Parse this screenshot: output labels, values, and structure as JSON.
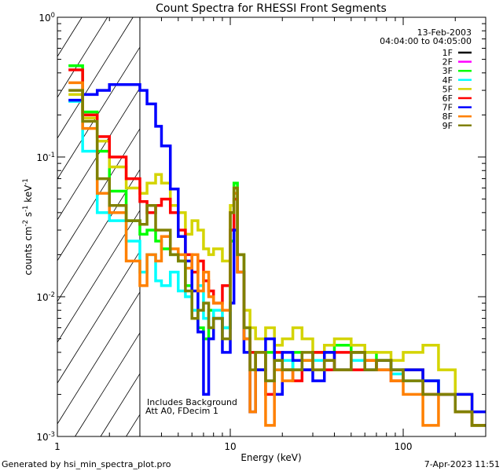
{
  "chart_data": {
    "type": "line",
    "title": "Count Spectra for RHESSI Front Segments",
    "xlabel": "Energy (keV)",
    "ylabel": "counts cm^-2 s^-1 keV^-1",
    "xscale": "log",
    "yscale": "log",
    "xlim": [
      1,
      300
    ],
    "ylim": [
      0.001,
      1
    ],
    "x_ticks": [
      {
        "v": 1,
        "label": "1"
      },
      {
        "v": 10,
        "label": "10"
      },
      {
        "v": 100,
        "label": "100"
      }
    ],
    "y_ticks": [
      {
        "v": 1,
        "label": "10^0"
      },
      {
        "v": 0.1,
        "label": "10^-1"
      },
      {
        "v": 0.01,
        "label": "10^-2"
      },
      {
        "v": 0.001,
        "label": "10^-3"
      }
    ],
    "legend_placement": "top-right",
    "legend_header": [
      "13-Feb-2003",
      "04:04:00 to 04:05:00"
    ],
    "annotations": [
      "Includes Background",
      "Att A0, FDecim 1"
    ],
    "hatched_region_keV": [
      1,
      3
    ],
    "energy_edges": [
      1.16,
      1.4,
      1.7,
      2.0,
      2.5,
      3.0,
      3.3,
      3.7,
      4.0,
      4.5,
      5.0,
      5.5,
      6.0,
      6.5,
      7.0,
      7.5,
      8.0,
      9.0,
      10.0,
      10.5,
      11.0,
      12,
      13,
      14,
      16,
      18,
      20,
      23,
      26,
      30,
      35,
      40,
      50,
      60,
      70,
      85,
      100,
      130,
      160,
      200,
      250,
      300
    ],
    "series": [
      {
        "name": "1F",
        "color": "#000000",
        "values": []
      },
      {
        "name": "2F",
        "color": "#ff00ff",
        "values": []
      },
      {
        "name": "3F",
        "color": "#00ff00",
        "values": [
          0.45,
          0.21,
          0.11,
          0.057,
          0.035,
          0.028,
          0.03,
          0.025,
          0.022,
          0.02,
          0.018,
          0.012,
          0.008,
          0.006,
          0.005,
          0.008,
          0.007,
          0.006,
          0.025,
          0.065,
          0.02,
          0.006,
          0.004,
          0.003,
          0.004,
          0.0035,
          0.003,
          0.004,
          0.0035,
          0.004,
          0.004,
          0.0045,
          0.004,
          0.004,
          0.0035,
          0.003,
          0.003,
          0.0025,
          0.002,
          0.0015,
          0.0012
        ]
      },
      {
        "name": "4F",
        "color": "#00ffff",
        "values": [
          0.25,
          0.11,
          0.04,
          0.035,
          0.025,
          0.015,
          0.02,
          0.013,
          0.012,
          0.015,
          0.011,
          0.01,
          0.008,
          0.012,
          0.007,
          0.006,
          0.008,
          0.006,
          0.03,
          0.05,
          0.02,
          0.005,
          0.004,
          0.003,
          0.0025,
          0.003,
          0.0035,
          0.003,
          0.003,
          0.0035,
          0.003,
          0.003,
          0.0035,
          0.003,
          0.003,
          0.0028,
          0.0025,
          0.0025,
          0.002,
          0.0015,
          0.0012
        ]
      },
      {
        "name": "5F",
        "color": "#d4d400",
        "values": [
          0.28,
          0.19,
          0.13,
          0.085,
          0.06,
          0.055,
          0.065,
          0.075,
          0.065,
          0.045,
          0.04,
          0.028,
          0.035,
          0.03,
          0.022,
          0.02,
          0.022,
          0.018,
          0.045,
          0.06,
          0.02,
          0.008,
          0.006,
          0.005,
          0.006,
          0.0045,
          0.005,
          0.006,
          0.005,
          0.004,
          0.0045,
          0.005,
          0.0045,
          0.004,
          0.004,
          0.0035,
          0.004,
          0.0045,
          0.003,
          0.002,
          0.0012
        ]
      },
      {
        "name": "6F",
        "color": "#ff0000",
        "values": [
          0.42,
          0.2,
          0.14,
          0.1,
          0.07,
          0.048,
          0.04,
          0.045,
          0.05,
          0.04,
          0.03,
          0.02,
          0.015,
          0.018,
          0.013,
          0.011,
          0.009,
          0.012,
          0.03,
          0.05,
          0.015,
          0.005,
          0.004,
          0.003,
          0.002,
          0.004,
          0.003,
          0.0025,
          0.003,
          0.004,
          0.003,
          0.004,
          0.003,
          0.0035,
          0.003,
          0.0025,
          0.003,
          0.002,
          0.002,
          0.0015,
          0.0012
        ]
      },
      {
        "name": "7F",
        "color": "#0000ff",
        "values": [
          0.255,
          0.28,
          0.3,
          0.33,
          0.33,
          0.3,
          0.24,
          0.166,
          0.12,
          0.059,
          0.027,
          0.018,
          0.011,
          0.0056,
          0.002,
          0.005,
          0.007,
          0.004,
          0.009,
          0.03,
          0.015,
          0.004,
          0.0015,
          0.003,
          0.005,
          0.002,
          0.004,
          0.0035,
          0.003,
          0.0025,
          0.004,
          0.003,
          0.004,
          0.003,
          0.0035,
          0.003,
          0.003,
          0.0025,
          0.002,
          0.002,
          0.0015
        ]
      },
      {
        "name": "8F",
        "color": "#ff8000",
        "values": [
          0.34,
          0.16,
          0.055,
          0.04,
          0.018,
          0.012,
          0.02,
          0.018,
          0.027,
          0.022,
          0.02,
          0.016,
          0.02,
          0.011,
          0.015,
          0.01,
          0.009,
          0.008,
          0.04,
          0.055,
          0.015,
          0.005,
          0.0015,
          0.004,
          0.0012,
          0.003,
          0.0025,
          0.003,
          0.0035,
          0.003,
          0.0035,
          0.003,
          0.004,
          0.0035,
          0.003,
          0.0025,
          0.002,
          0.0012,
          0.002,
          0.0015,
          0.0012
        ]
      },
      {
        "name": "9F",
        "color": "#808000",
        "values": [
          0.3,
          0.18,
          0.07,
          0.045,
          0.035,
          0.033,
          0.045,
          0.03,
          0.03,
          0.02,
          0.018,
          0.011,
          0.007,
          0.008,
          0.009,
          0.006,
          0.007,
          0.005,
          0.04,
          0.06,
          0.02,
          0.006,
          0.003,
          0.004,
          0.0025,
          0.0035,
          0.003,
          0.003,
          0.004,
          0.003,
          0.0035,
          0.003,
          0.004,
          0.003,
          0.0035,
          0.003,
          0.0025,
          0.002,
          0.002,
          0.0015,
          0.0012
        ]
      }
    ]
  },
  "footer": {
    "generated_by": "Generated by hsi_min_spectra_plot.pro",
    "timestamp": "7-Apr-2023 11:51"
  }
}
